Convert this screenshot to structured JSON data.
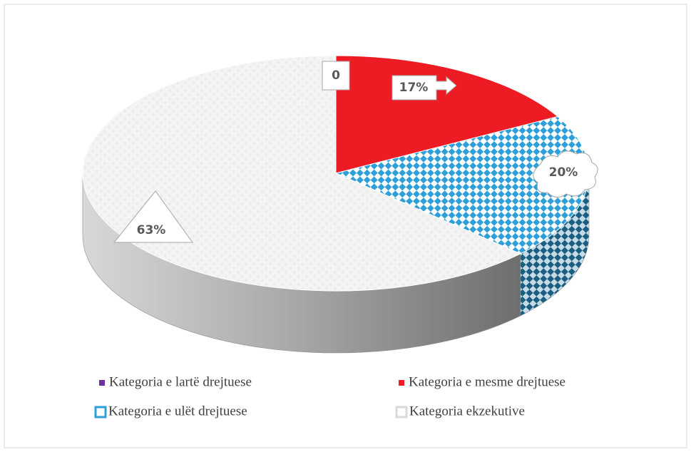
{
  "chart_data": {
    "type": "pie3d",
    "categories": [
      "Kategoria e lartë drejtuese",
      "Kategoria e mesme drejtuese",
      "Kategoria e ulët drejtuese",
      "Kategoria ekzekutive"
    ],
    "values": [
      0,
      17,
      20,
      63
    ],
    "value_labels": [
      "0",
      "17%",
      "20%",
      "63%"
    ],
    "colors": [
      "#7030a0",
      "#ed1c24",
      "#2e9fd8",
      "#d9d9d9"
    ]
  }
}
